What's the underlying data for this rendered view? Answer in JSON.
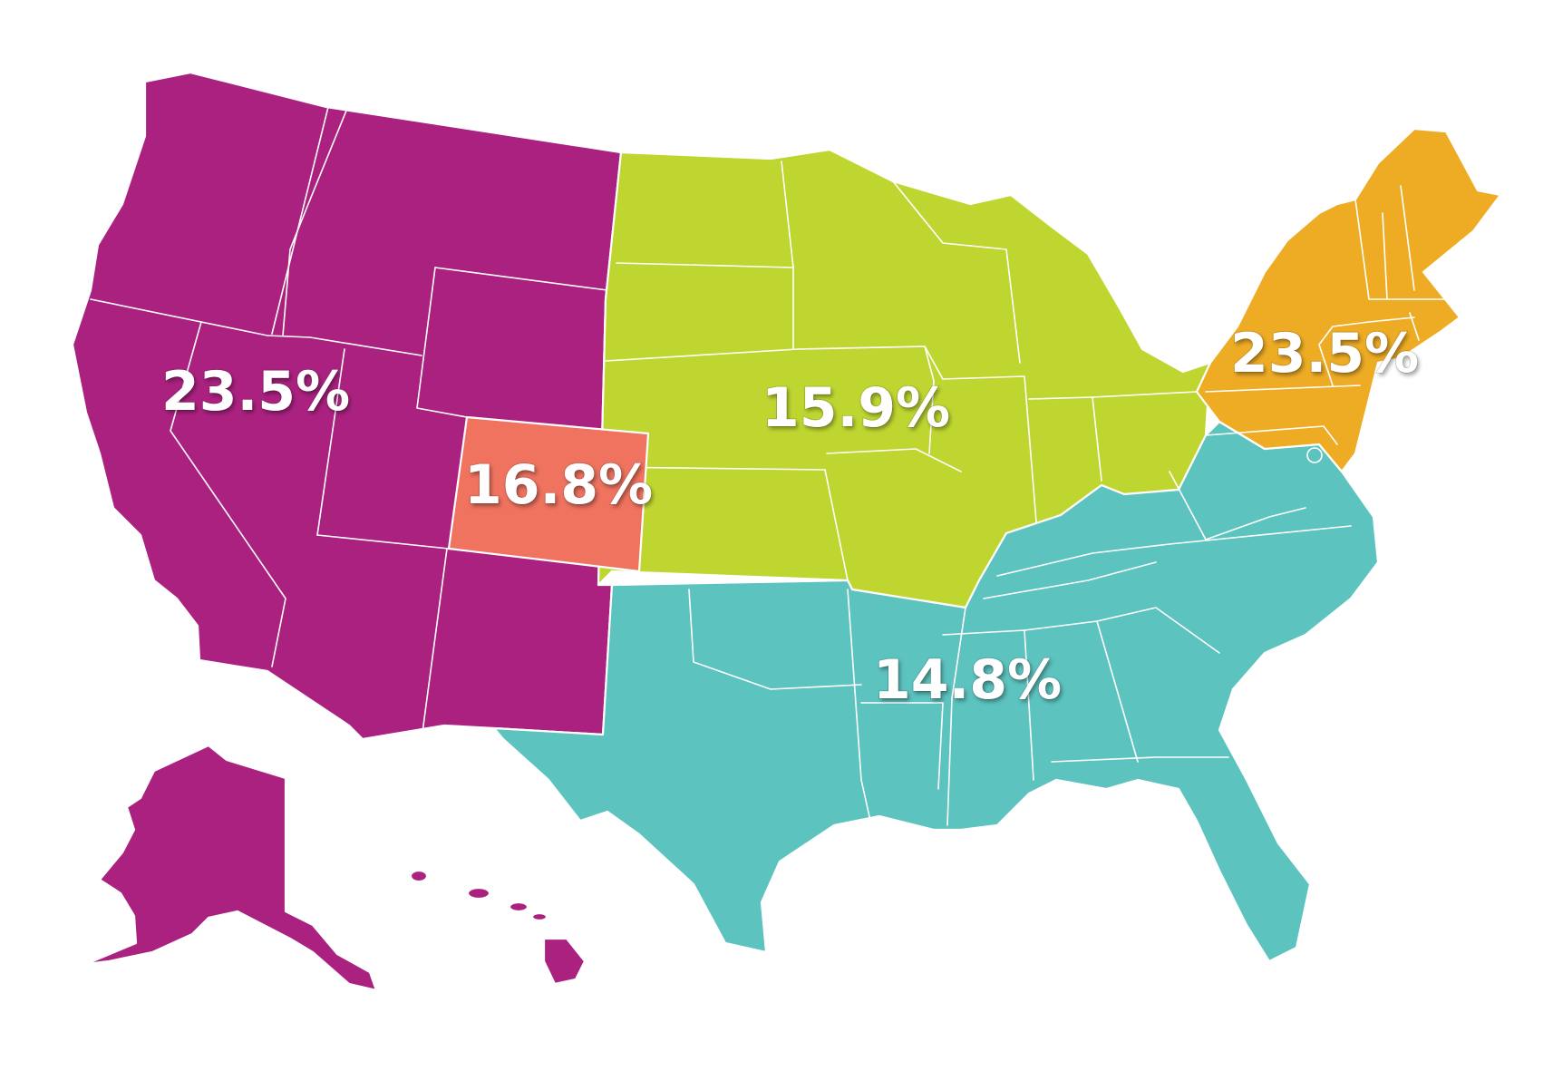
{
  "map": {
    "regions": [
      {
        "id": "west",
        "label": "23.5%",
        "color": "#ab2180"
      },
      {
        "id": "colorado",
        "label": "16.8%",
        "color": "#ef735f"
      },
      {
        "id": "midwest",
        "label": "15.9%",
        "color": "#bfd631"
      },
      {
        "id": "south",
        "label": "14.8%",
        "color": "#5cc3bf"
      },
      {
        "id": "northeast",
        "label": "23.5%",
        "color": "#eeac25"
      }
    ]
  }
}
